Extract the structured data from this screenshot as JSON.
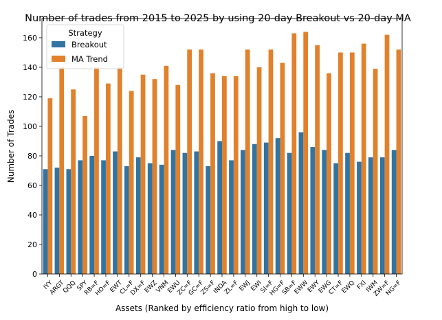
{
  "chart_data": {
    "type": "bar",
    "title": "Number of trades from 2015 to 2025 by using 20-day Breakout vs 20-day MA",
    "xlabel": "Assets (Ranked by efficiency ratio from high to low)",
    "ylabel": "Number of Trades",
    "ylim": [
      0,
      173
    ],
    "yticks": [
      0,
      20,
      40,
      60,
      80,
      100,
      120,
      140,
      160
    ],
    "grid": false,
    "legend": {
      "title": "Strategy",
      "placement": "top-left"
    },
    "categories": [
      "IYY",
      "ARGT",
      "QQQ",
      "SPY",
      "RB=F",
      "HO=F",
      "EWT",
      "CL=F",
      "DX=F",
      "EWZ",
      "VNM",
      "EWU",
      "ZC=F",
      "GC=F",
      "ZS=F",
      "INDA",
      "ZL=F",
      "EWJ",
      "EWI",
      "SI=F",
      "HG=F",
      "SB=F",
      "EWW",
      "EWY",
      "EWG",
      "CT=F",
      "EWQ",
      "FXI",
      "IWM",
      "ZW=F",
      "NG=F"
    ],
    "series": [
      {
        "name": "Breakout",
        "color": "#3274a1",
        "values": [
          71,
          72,
          71,
          77,
          80,
          77,
          83,
          73,
          79,
          75,
          74,
          84,
          82,
          83,
          73,
          90,
          77,
          84,
          88,
          89,
          92,
          82,
          96,
          86,
          84,
          75,
          82,
          76,
          79,
          79,
          84
        ]
      },
      {
        "name": "MA Trend",
        "color": "#e1812c",
        "values": [
          119,
          140,
          125,
          107,
          140,
          129,
          140,
          124,
          135,
          132,
          141,
          128,
          152,
          152,
          136,
          134,
          134,
          152,
          140,
          152,
          143,
          163,
          164,
          155,
          136,
          150,
          150,
          156,
          139,
          162,
          152
        ]
      }
    ]
  }
}
